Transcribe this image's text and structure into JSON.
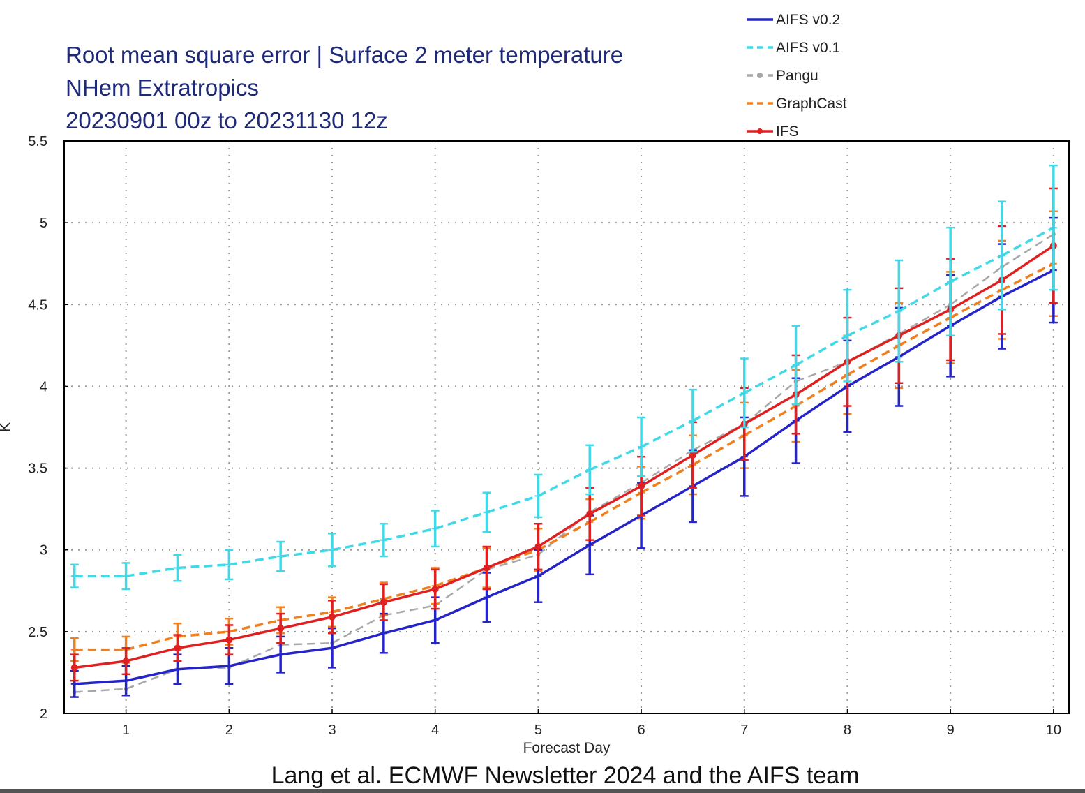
{
  "chart_data": {
    "type": "line",
    "title_lines": [
      "Root mean square error | Surface 2 meter temperature",
      "NHem Extratropics",
      "20230901 00z to 20231130 12z"
    ],
    "xlabel": "Forecast Day",
    "ylabel": "K",
    "xlim": [
      0.4,
      10.15
    ],
    "ylim": [
      2,
      5.5
    ],
    "xticks": [
      "1",
      "2",
      "3",
      "4",
      "5",
      "6",
      "7",
      "8",
      "9",
      "10"
    ],
    "yticks": [
      "2",
      "2.5",
      "3",
      "3.5",
      "4",
      "4.5",
      "5",
      "5.5"
    ],
    "grid": true,
    "legend_position": "top-right, above plot",
    "x": [
      0.5,
      1,
      1.5,
      2,
      2.5,
      3,
      3.5,
      4,
      4.5,
      5,
      5.5,
      6,
      6.5,
      7,
      7.5,
      8,
      8.5,
      9,
      9.5,
      10
    ],
    "series": [
      {
        "name": "AIFS v0.2",
        "color": "#2424c8",
        "dash": "solid",
        "marker": "plus",
        "values": [
          2.18,
          2.2,
          2.27,
          2.29,
          2.36,
          2.4,
          2.49,
          2.57,
          2.71,
          2.84,
          3.03,
          3.21,
          3.39,
          3.57,
          3.79,
          4.0,
          4.18,
          4.37,
          4.55,
          4.71
        ],
        "err": [
          0.08,
          0.09,
          0.09,
          0.11,
          0.11,
          0.12,
          0.12,
          0.14,
          0.15,
          0.16,
          0.18,
          0.2,
          0.22,
          0.24,
          0.26,
          0.28,
          0.3,
          0.31,
          0.32,
          0.32
        ]
      },
      {
        "name": "AIFS v0.1",
        "color": "#3fd9e8",
        "dash": "dashed",
        "marker": "plus",
        "values": [
          2.84,
          2.84,
          2.89,
          2.91,
          2.96,
          3.0,
          3.06,
          3.13,
          3.23,
          3.33,
          3.49,
          3.63,
          3.79,
          3.96,
          4.13,
          4.31,
          4.46,
          4.64,
          4.8,
          4.97
        ],
        "err": [
          0.07,
          0.08,
          0.08,
          0.09,
          0.09,
          0.1,
          0.1,
          0.11,
          0.12,
          0.13,
          0.15,
          0.18,
          0.19,
          0.21,
          0.24,
          0.28,
          0.31,
          0.33,
          0.33,
          0.38
        ]
      },
      {
        "name": "Pangu",
        "color": "#a8a8a8",
        "dash": "dashed",
        "marker": "dot",
        "values": [
          2.13,
          2.15,
          2.27,
          2.28,
          2.42,
          2.43,
          2.6,
          2.66,
          2.88,
          2.97,
          3.23,
          3.41,
          3.61,
          3.77,
          4.03,
          4.15,
          4.32,
          4.5,
          4.73,
          4.93
        ],
        "err": [
          0,
          0,
          0,
          0,
          0,
          0,
          0,
          0,
          0,
          0,
          0,
          0,
          0,
          0,
          0,
          0,
          0,
          0,
          0,
          0
        ]
      },
      {
        "name": "GraphCast",
        "color": "#f0801e",
        "dash": "dashed",
        "marker": "plus",
        "values": [
          2.39,
          2.39,
          2.47,
          2.5,
          2.57,
          2.62,
          2.7,
          2.78,
          2.89,
          3.0,
          3.17,
          3.35,
          3.52,
          3.7,
          3.88,
          4.07,
          4.25,
          4.42,
          4.59,
          4.75
        ],
        "err": [
          0.07,
          0.08,
          0.08,
          0.08,
          0.08,
          0.09,
          0.1,
          0.11,
          0.12,
          0.13,
          0.14,
          0.16,
          0.18,
          0.2,
          0.22,
          0.24,
          0.26,
          0.28,
          0.3,
          0.32
        ]
      },
      {
        "name": "IFS",
        "color": "#e02020",
        "dash": "solid",
        "marker": "dot",
        "values": [
          2.28,
          2.32,
          2.4,
          2.45,
          2.52,
          2.59,
          2.68,
          2.76,
          2.89,
          3.02,
          3.22,
          3.39,
          3.58,
          3.77,
          3.95,
          4.15,
          4.31,
          4.47,
          4.65,
          4.86
        ],
        "err": [
          0.08,
          0.08,
          0.08,
          0.09,
          0.09,
          0.1,
          0.11,
          0.12,
          0.13,
          0.14,
          0.16,
          0.18,
          0.2,
          0.22,
          0.24,
          0.27,
          0.29,
          0.31,
          0.33,
          0.35
        ]
      }
    ],
    "caption": "Lang et al. ECMWF Newsletter 2024 and the AIFS team"
  }
}
